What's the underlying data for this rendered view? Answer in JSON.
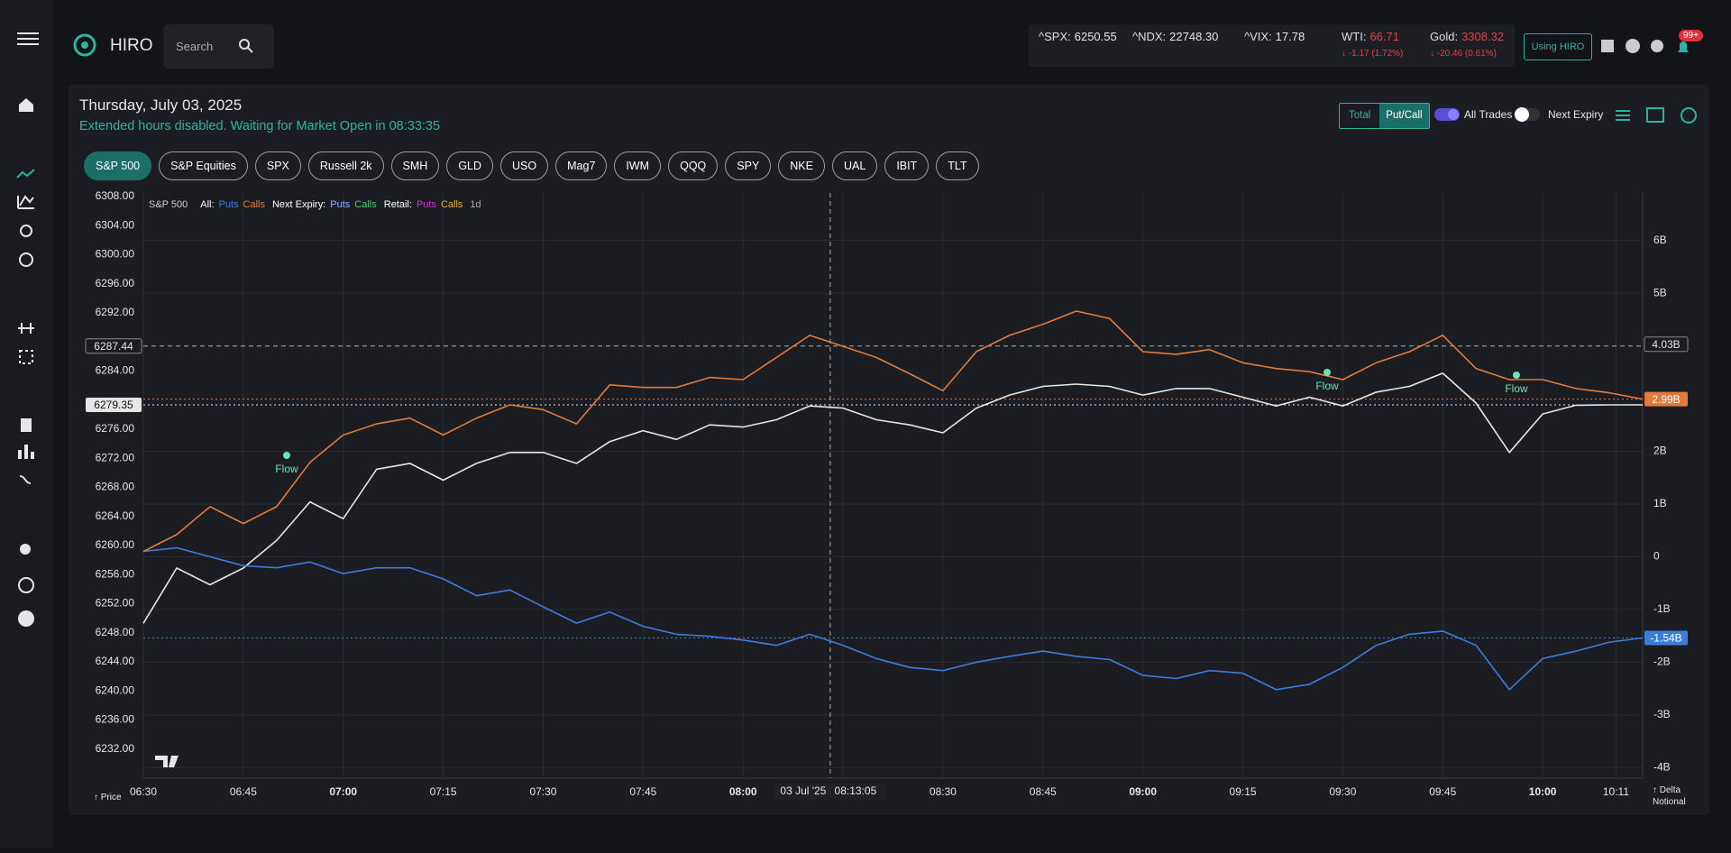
{
  "header": {
    "brand": "HIRO",
    "search": "Search",
    "tickers": [
      {
        "name": "^SPX:",
        "value": "6250.55"
      },
      {
        "name": "^NDX:",
        "value": "22748.30"
      },
      {
        "name": "^VIX:",
        "value": "17.78"
      },
      {
        "name": "WTI:",
        "value": "66.71",
        "change": "↓ -1.17 (1.72%)"
      },
      {
        "name": "Gold:",
        "value": "3308.32",
        "change": "↓ -20.46 (0.61%)"
      }
    ],
    "button": "Using HIRO",
    "badge": "99+"
  },
  "page": {
    "date": "Thursday, July 03, 2025",
    "status": "Extended hours disabled. Waiting for Market Open in 08:33:35",
    "tabs": [
      "S&P 500",
      "S&P Equities",
      "SPX",
      "Russell 2k",
      "SMH",
      "GLD",
      "USO",
      "Mag7",
      "IWM",
      "QQQ",
      "SPY",
      "NKE",
      "UAL",
      "IBIT",
      "TLT"
    ],
    "active_tab": 0,
    "view_toggle": [
      "Total",
      "Put/Call"
    ],
    "toggles": [
      "All Trades",
      "Next Expiry"
    ]
  },
  "chart_data": {
    "type": "line",
    "y_label": "↑ Price",
    "y2_label": "↑ Delta Notional",
    "x": [
      "06:30",
      "06:35",
      "06:40",
      "06:45",
      "06:50",
      "06:55",
      "07:00",
      "07:05",
      "07:10",
      "07:15",
      "07:20",
      "07:25",
      "07:30",
      "07:35",
      "07:40",
      "07:45",
      "07:50",
      "07:55",
      "08:00",
      "08:05",
      "08:10",
      "08:15",
      "08:20",
      "08:25",
      "08:30",
      "08:35",
      "08:40",
      "08:45",
      "08:50",
      "08:55",
      "09:00",
      "09:05",
      "09:10",
      "09:15",
      "09:20",
      "09:25",
      "09:30",
      "09:35",
      "09:40",
      "09:45",
      "09:50",
      "09:55",
      "10:00",
      "10:05",
      "10:10",
      "10:15"
    ],
    "xlim": [
      "06:30",
      "10:15"
    ],
    "xticks": [
      "06:30",
      "06:45",
      "07:00",
      "07:15",
      "07:30",
      "07:45",
      "08:00",
      "08:15",
      "08:30",
      "08:45",
      "09:00",
      "09:15",
      "09:30",
      "09:45",
      "10:00",
      "10:11"
    ],
    "series": [
      {
        "name": "S&P 500",
        "color": "#e6e6e6",
        "values": [
          6249.3,
          6256.9,
          6254.6,
          6256.9,
          6260.7,
          6266,
          6263.7,
          6270.5,
          6271.3,
          6269,
          6271.3,
          6272.8,
          6272.8,
          6271.3,
          6274.3,
          6275.8,
          6274.6,
          6276.6,
          6276.3,
          6277.3,
          6279.2,
          6278.9,
          6277.3,
          6276.6,
          6275.5,
          6278.9,
          6280.7,
          6281.9,
          6282.2,
          6281.9,
          6280.7,
          6281.6,
          6281.6,
          6280.4,
          6279.2,
          6280.4,
          6279.2,
          6281.1,
          6281.9,
          6283.7,
          6279.6,
          6272.8,
          6278.1,
          6279.3,
          6279.35,
          6279.35
        ]
      },
      {
        "name": "Puts",
        "color": "#3b7ddd",
        "axis": "y2",
        "values": [
          0.1,
          0.17,
          0,
          -0.17,
          -0.21,
          -0.1,
          -0.32,
          -0.21,
          -0.21,
          -0.42,
          -0.74,
          -0.63,
          -0.95,
          -1.26,
          -1.05,
          -1.32,
          -1.47,
          -1.51,
          -1.58,
          -1.68,
          -1.47,
          -1.68,
          -1.93,
          -2.1,
          -2.16,
          -2,
          -1.89,
          -1.79,
          -1.89,
          -1.95,
          -2.25,
          -2.31,
          -2.16,
          -2.21,
          -2.52,
          -2.42,
          -2.1,
          -1.68,
          -1.47,
          -1.41,
          -1.68,
          -2.52,
          -1.93,
          -1.79,
          -1.62,
          -1.54
        ]
      },
      {
        "name": "Calls",
        "color": "#e07b3c",
        "axis": "y2",
        "values": [
          0.1,
          0.42,
          0.95,
          0.63,
          0.95,
          1.79,
          2.31,
          2.52,
          2.63,
          2.31,
          2.63,
          2.88,
          2.79,
          2.52,
          3.26,
          3.21,
          3.21,
          3.4,
          3.36,
          3.78,
          4.2,
          3.99,
          3.78,
          3.47,
          3.15,
          3.89,
          4.2,
          4.41,
          4.66,
          4.52,
          3.89,
          3.84,
          3.93,
          3.68,
          3.57,
          3.51,
          3.36,
          3.68,
          3.89,
          4.2,
          3.57,
          3.36,
          3.36,
          3.19,
          3.11,
          2.99
        ]
      }
    ],
    "ylim": [
      6228,
      6308.5
    ],
    "yticks": [
      {
        "value": 6308,
        "label": "6308.00"
      },
      {
        "value": 6304,
        "label": "6304.00"
      },
      {
        "value": 6300,
        "label": "6300.00"
      },
      {
        "value": 6296,
        "label": "6296.00"
      },
      {
        "value": 6292,
        "label": "6292.00"
      },
      {
        "value": 6284,
        "label": "6284.00"
      },
      {
        "value": 6276,
        "label": "6276.00"
      },
      {
        "value": 6272,
        "label": "6272.00"
      },
      {
        "value": 6268,
        "label": "6268.00"
      },
      {
        "value": 6264,
        "label": "6264.00"
      },
      {
        "value": 6260,
        "label": "6260.00"
      },
      {
        "value": 6256,
        "label": "6256.00"
      },
      {
        "value": 6252,
        "label": "6252.00"
      },
      {
        "value": 6248,
        "label": "6248.00"
      },
      {
        "value": 6244,
        "label": "6244.00"
      },
      {
        "value": 6240,
        "label": "6240.00"
      },
      {
        "value": 6236,
        "label": "6236.00"
      },
      {
        "value": 6232,
        "label": "6232.00"
      }
    ],
    "y2lim": [
      -4.2,
      6.9
    ],
    "y2ticks": [
      {
        "value": 6,
        "label": "6B"
      },
      {
        "value": 5,
        "label": "5B"
      },
      {
        "value": 2,
        "label": "2B"
      },
      {
        "value": 1,
        "label": "1B"
      },
      0,
      {
        "value": -1,
        "label": "-1B"
      },
      {
        "value": -2,
        "label": "-2B"
      },
      {
        "value": -3,
        "label": "-3B"
      },
      {
        "value": -4,
        "label": "-4B"
      }
    ],
    "grid": true,
    "legend": {
      "groups": [
        {
          "label": "Next Expiry:",
          "items": [
            {
              "text": "Puts",
              "color": "#8fb3ff"
            },
            {
              "text": "Calls",
              "color": "#4cc96a"
            }
          ]
        },
        {
          "label": "Retail:",
          "items": [
            {
              "text": "Puts",
              "color": "#c03cc9"
            },
            {
              "text": "Calls",
              "color": "#e0b43c"
            }
          ]
        }
      ],
      "all_label": "All:",
      "period": "1d"
    },
    "last": [
      {
        "value": 6279.35,
        "label": "6279.35",
        "color": "#e6e6e6"
      },
      {
        "value": 2.99,
        "label": "2.99B",
        "axis": "y2",
        "color": "#e07b3c"
      },
      {
        "value": -1.54,
        "label": "-1.54B",
        "axis": "y2",
        "color": "#3b7ddd"
      }
    ],
    "crosshair": {
      "date": "03 Jul '25",
      "time": "08:13:05",
      "price": {
        "value": 6287.44,
        "label": "6287.44"
      },
      "notional": {
        "value": 4.03,
        "label": "4.03B"
      }
    },
    "annotations": [
      "Flow",
      "Flow",
      "Flow"
    ]
  }
}
